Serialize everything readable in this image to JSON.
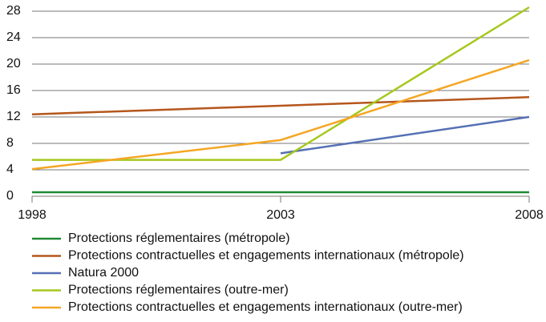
{
  "chart_data": {
    "type": "line",
    "x": [
      1998,
      2003,
      2008
    ],
    "xlim": [
      1998,
      2008
    ],
    "xticks": [
      1998,
      2003,
      2008
    ],
    "ylim": [
      0,
      28
    ],
    "yticks": [
      0,
      4,
      8,
      12,
      16,
      20,
      24,
      28
    ],
    "grid": true,
    "series": [
      {
        "name": "Protections réglementaires (métropole)",
        "color": "#1f8a33",
        "values": [
          0.6,
          0.6,
          0.6
        ]
      },
      {
        "name": "Protections contractuelles et engagements internationaux (métropole)",
        "color": "#b5561c",
        "values": [
          12.4,
          13.7,
          15.0
        ]
      },
      {
        "name": "Natura 2000",
        "color": "#5570b5",
        "values": [
          null,
          6.5,
          12.0
        ]
      },
      {
        "name": "Protections réglementaires (outre-mer)",
        "color": "#a6c81e",
        "values": [
          5.5,
          5.5,
          28.6
        ]
      },
      {
        "name": "Protections contractuelles et engagements internationaux (outre-mer)",
        "color": "#f5a623",
        "values": [
          4.1,
          8.5,
          20.6
        ]
      }
    ]
  }
}
